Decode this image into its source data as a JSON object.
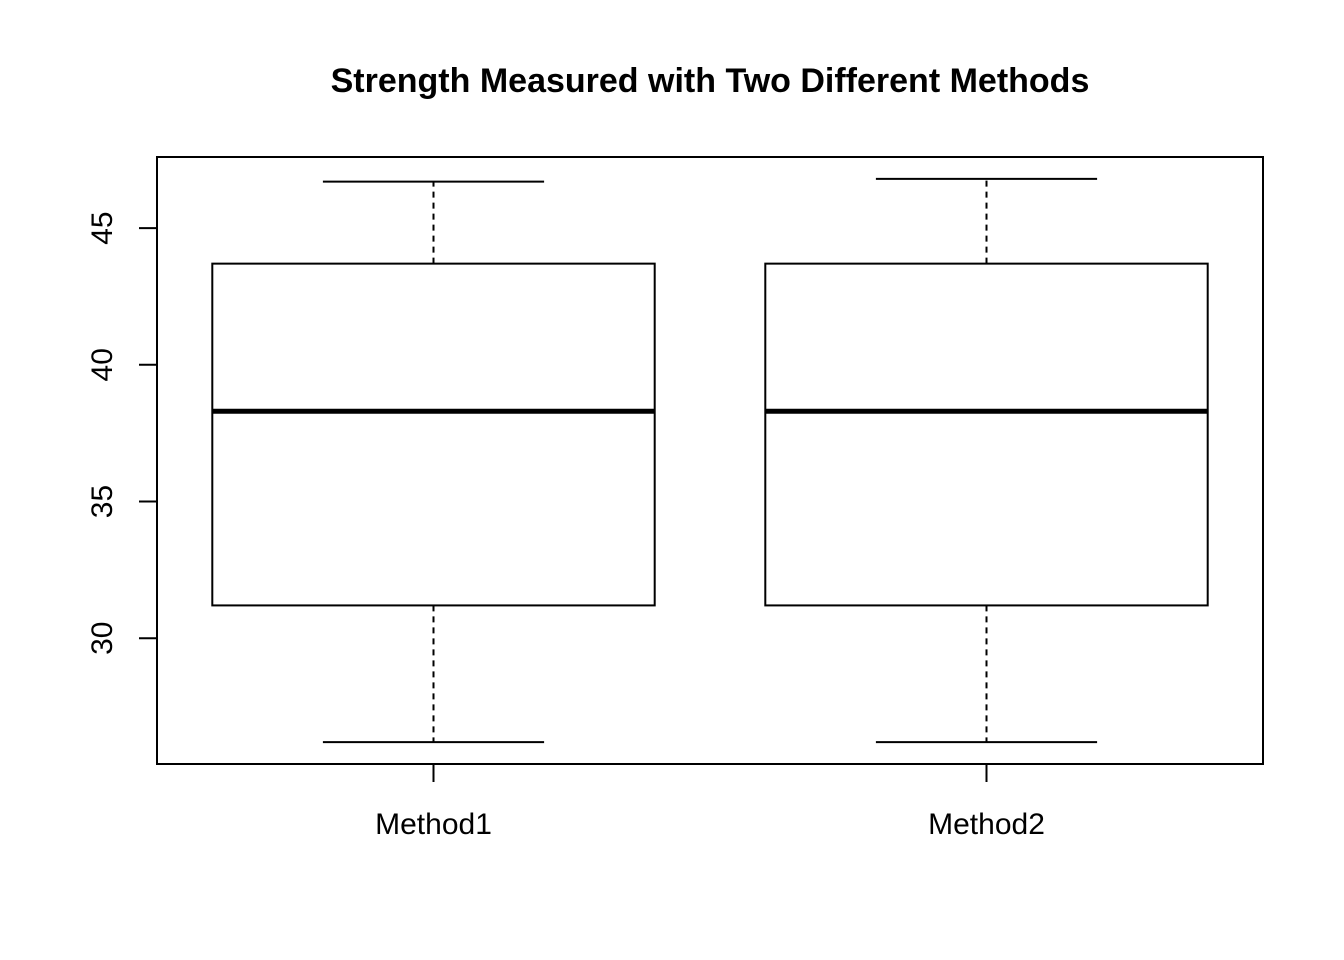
{
  "chart_data": {
    "type": "box",
    "title": "Strength Measured with Two Different Methods",
    "xlabel": "",
    "ylabel": "",
    "categories": [
      "Method1",
      "Method2"
    ],
    "boxes": [
      {
        "name": "Method1",
        "min": 26.2,
        "q1": 31.2,
        "median": 38.3,
        "q3": 43.7,
        "max": 46.7
      },
      {
        "name": "Method2",
        "min": 26.2,
        "q1": 31.2,
        "median": 38.3,
        "q3": 43.7,
        "max": 46.8
      }
    ],
    "ylim": [
      25.4,
      47.6
    ],
    "yticks": [
      30,
      35,
      40,
      45
    ],
    "grid": false,
    "legend": "none",
    "colors": {
      "box_fill": "#ffffff",
      "stroke": "#000000"
    }
  }
}
